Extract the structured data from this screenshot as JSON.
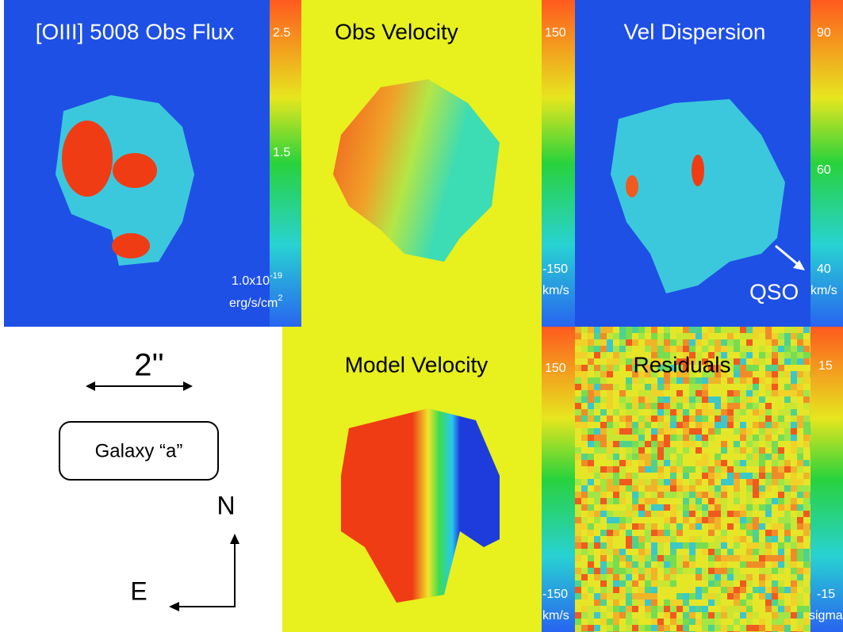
{
  "panels": {
    "flux": {
      "title": "[OIII] 5008 Obs Flux",
      "cbar_top": "2.5",
      "cbar_mid": "1.5",
      "unit_base": "1.0x10",
      "unit_exp": "-19",
      "unit_line2": "erg/s/cm",
      "unit_line2_exp": "2"
    },
    "obs_velocity": {
      "title": "Obs Velocity",
      "cbar_top": "150",
      "cbar_bottom": "-150",
      "unit": "km/s"
    },
    "dispersion": {
      "title": "Vel Dispersion",
      "cbar_top": "90",
      "cbar_mid": "60",
      "cbar_bottom": "40",
      "unit": "km/s",
      "annotation": "QSO"
    },
    "model_velocity": {
      "title": "Model Velocity",
      "cbar_top": "150",
      "cbar_bottom": "-150",
      "unit": "km/s"
    },
    "residuals": {
      "title": "Residuals",
      "cbar_top": "15",
      "cbar_bottom": "-15",
      "unit": "sigma"
    }
  },
  "legend": {
    "scale": "2''",
    "galaxy": "Galaxy “a”",
    "north": "N",
    "east": "E"
  }
}
